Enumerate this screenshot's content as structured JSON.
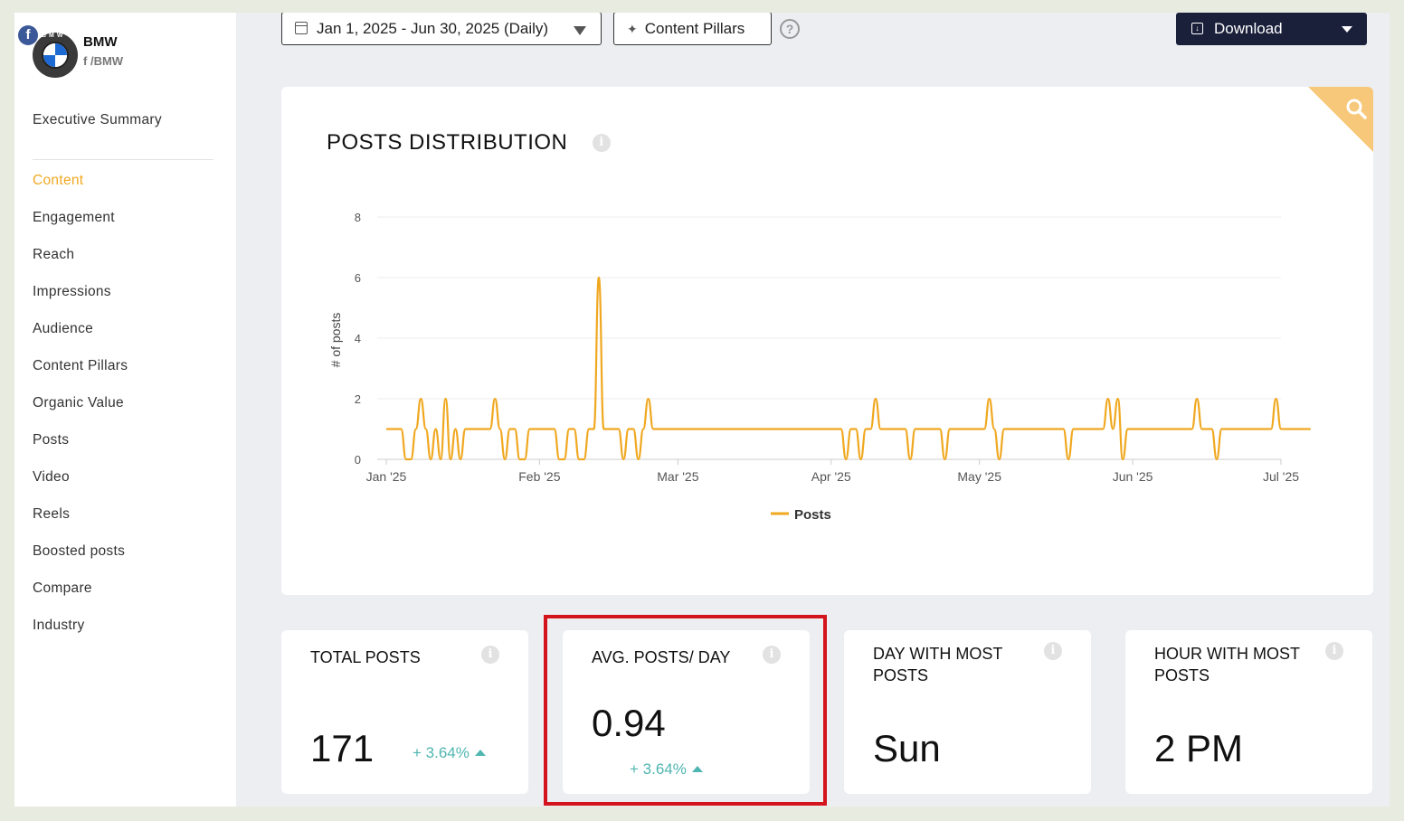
{
  "brand": {
    "name": "BMW",
    "handle": "/BMW",
    "logo_text": "BMW",
    "network_icon": "f"
  },
  "nav": {
    "items": [
      {
        "label": "Executive Summary",
        "active": false
      },
      {
        "label": "Content",
        "active": true
      },
      {
        "label": "Engagement",
        "active": false
      },
      {
        "label": "Reach",
        "active": false
      },
      {
        "label": "Impressions",
        "active": false
      },
      {
        "label": "Audience",
        "active": false
      },
      {
        "label": "Content Pillars",
        "active": false
      },
      {
        "label": "Organic Value",
        "active": false
      },
      {
        "label": "Posts",
        "active": false
      },
      {
        "label": "Video",
        "active": false
      },
      {
        "label": "Reels",
        "active": false
      },
      {
        "label": "Boosted posts",
        "active": false
      },
      {
        "label": "Compare",
        "active": false
      },
      {
        "label": "Industry",
        "active": false
      }
    ]
  },
  "toolbar": {
    "date_range": "Jan 1, 2025 - Jun 30, 2025 (Daily)",
    "pillars_label": "Content Pillars",
    "help_icon": "?",
    "download_label": "Download"
  },
  "colors": {
    "accent": "#f0a820",
    "positive": "#4fb6b1",
    "download_bg": "#1a1f3a",
    "highlight": "#d4141c"
  },
  "chart_data": {
    "type": "line",
    "title": "POSTS DISTRIBUTION",
    "ylabel": "# of posts",
    "xlabel": "",
    "ylim": [
      0,
      8
    ],
    "y_ticks": [
      0,
      2,
      4,
      6,
      8
    ],
    "x_ticks": [
      "Jan '25",
      "Feb '25",
      "Mar '25",
      "Apr '25",
      "May '25",
      "Jun '25",
      "Jul '25"
    ],
    "x_tick_days": [
      0,
      31,
      59,
      90,
      120,
      151,
      181
    ],
    "grid": true,
    "legend": "bottom-center",
    "series": [
      {
        "name": "Posts",
        "color": "#f0a820",
        "x_unit": "day index from Jan 1, 2025",
        "values": [
          1,
          1,
          1,
          1,
          0,
          0,
          1,
          2,
          1,
          0,
          1,
          0,
          2,
          0,
          1,
          0,
          1,
          1,
          1,
          1,
          1,
          1,
          2,
          1,
          0,
          1,
          1,
          0,
          0,
          1,
          1,
          1,
          1,
          1,
          1,
          0,
          0,
          1,
          1,
          0,
          0,
          1,
          1,
          6,
          1,
          1,
          1,
          1,
          0,
          1,
          1,
          0,
          1,
          2,
          1,
          1,
          1,
          1,
          1,
          1,
          1,
          1,
          1,
          1,
          1,
          1,
          1,
          1,
          1,
          1,
          1,
          1,
          1,
          1,
          1,
          1,
          1,
          1,
          1,
          1,
          1,
          1,
          1,
          1,
          1,
          1,
          1,
          1,
          1,
          1,
          1,
          1,
          1,
          0,
          1,
          1,
          0,
          1,
          1,
          2,
          1,
          1,
          1,
          1,
          1,
          1,
          0,
          1,
          1,
          1,
          1,
          1,
          1,
          0,
          1,
          1,
          1,
          1,
          1,
          1,
          1,
          1,
          2,
          1,
          0,
          1,
          1,
          1,
          1,
          1,
          1,
          1,
          1,
          1,
          1,
          1,
          1,
          1,
          0,
          1,
          1,
          1,
          1,
          1,
          1,
          1,
          2,
          1,
          2,
          0,
          1,
          1,
          1,
          1,
          1,
          1,
          1,
          1,
          1,
          1,
          1,
          1,
          1,
          1,
          2,
          1,
          1,
          1,
          0,
          1,
          1,
          1,
          1,
          1,
          1,
          1,
          1,
          1,
          1,
          1,
          2,
          1,
          1,
          1,
          1,
          1,
          1,
          1
        ]
      }
    ]
  },
  "stats": [
    {
      "label": "TOTAL POSTS",
      "value": "171",
      "change": "+ 3.64%",
      "direction": "up"
    },
    {
      "label": "AVG. POSTS/ DAY",
      "value": "0.94",
      "change": "+ 3.64%",
      "direction": "up"
    },
    {
      "label": "DAY WITH MOST POSTS",
      "value": "Sun"
    },
    {
      "label": "HOUR WITH MOST POSTS",
      "value": "2 PM"
    }
  ]
}
